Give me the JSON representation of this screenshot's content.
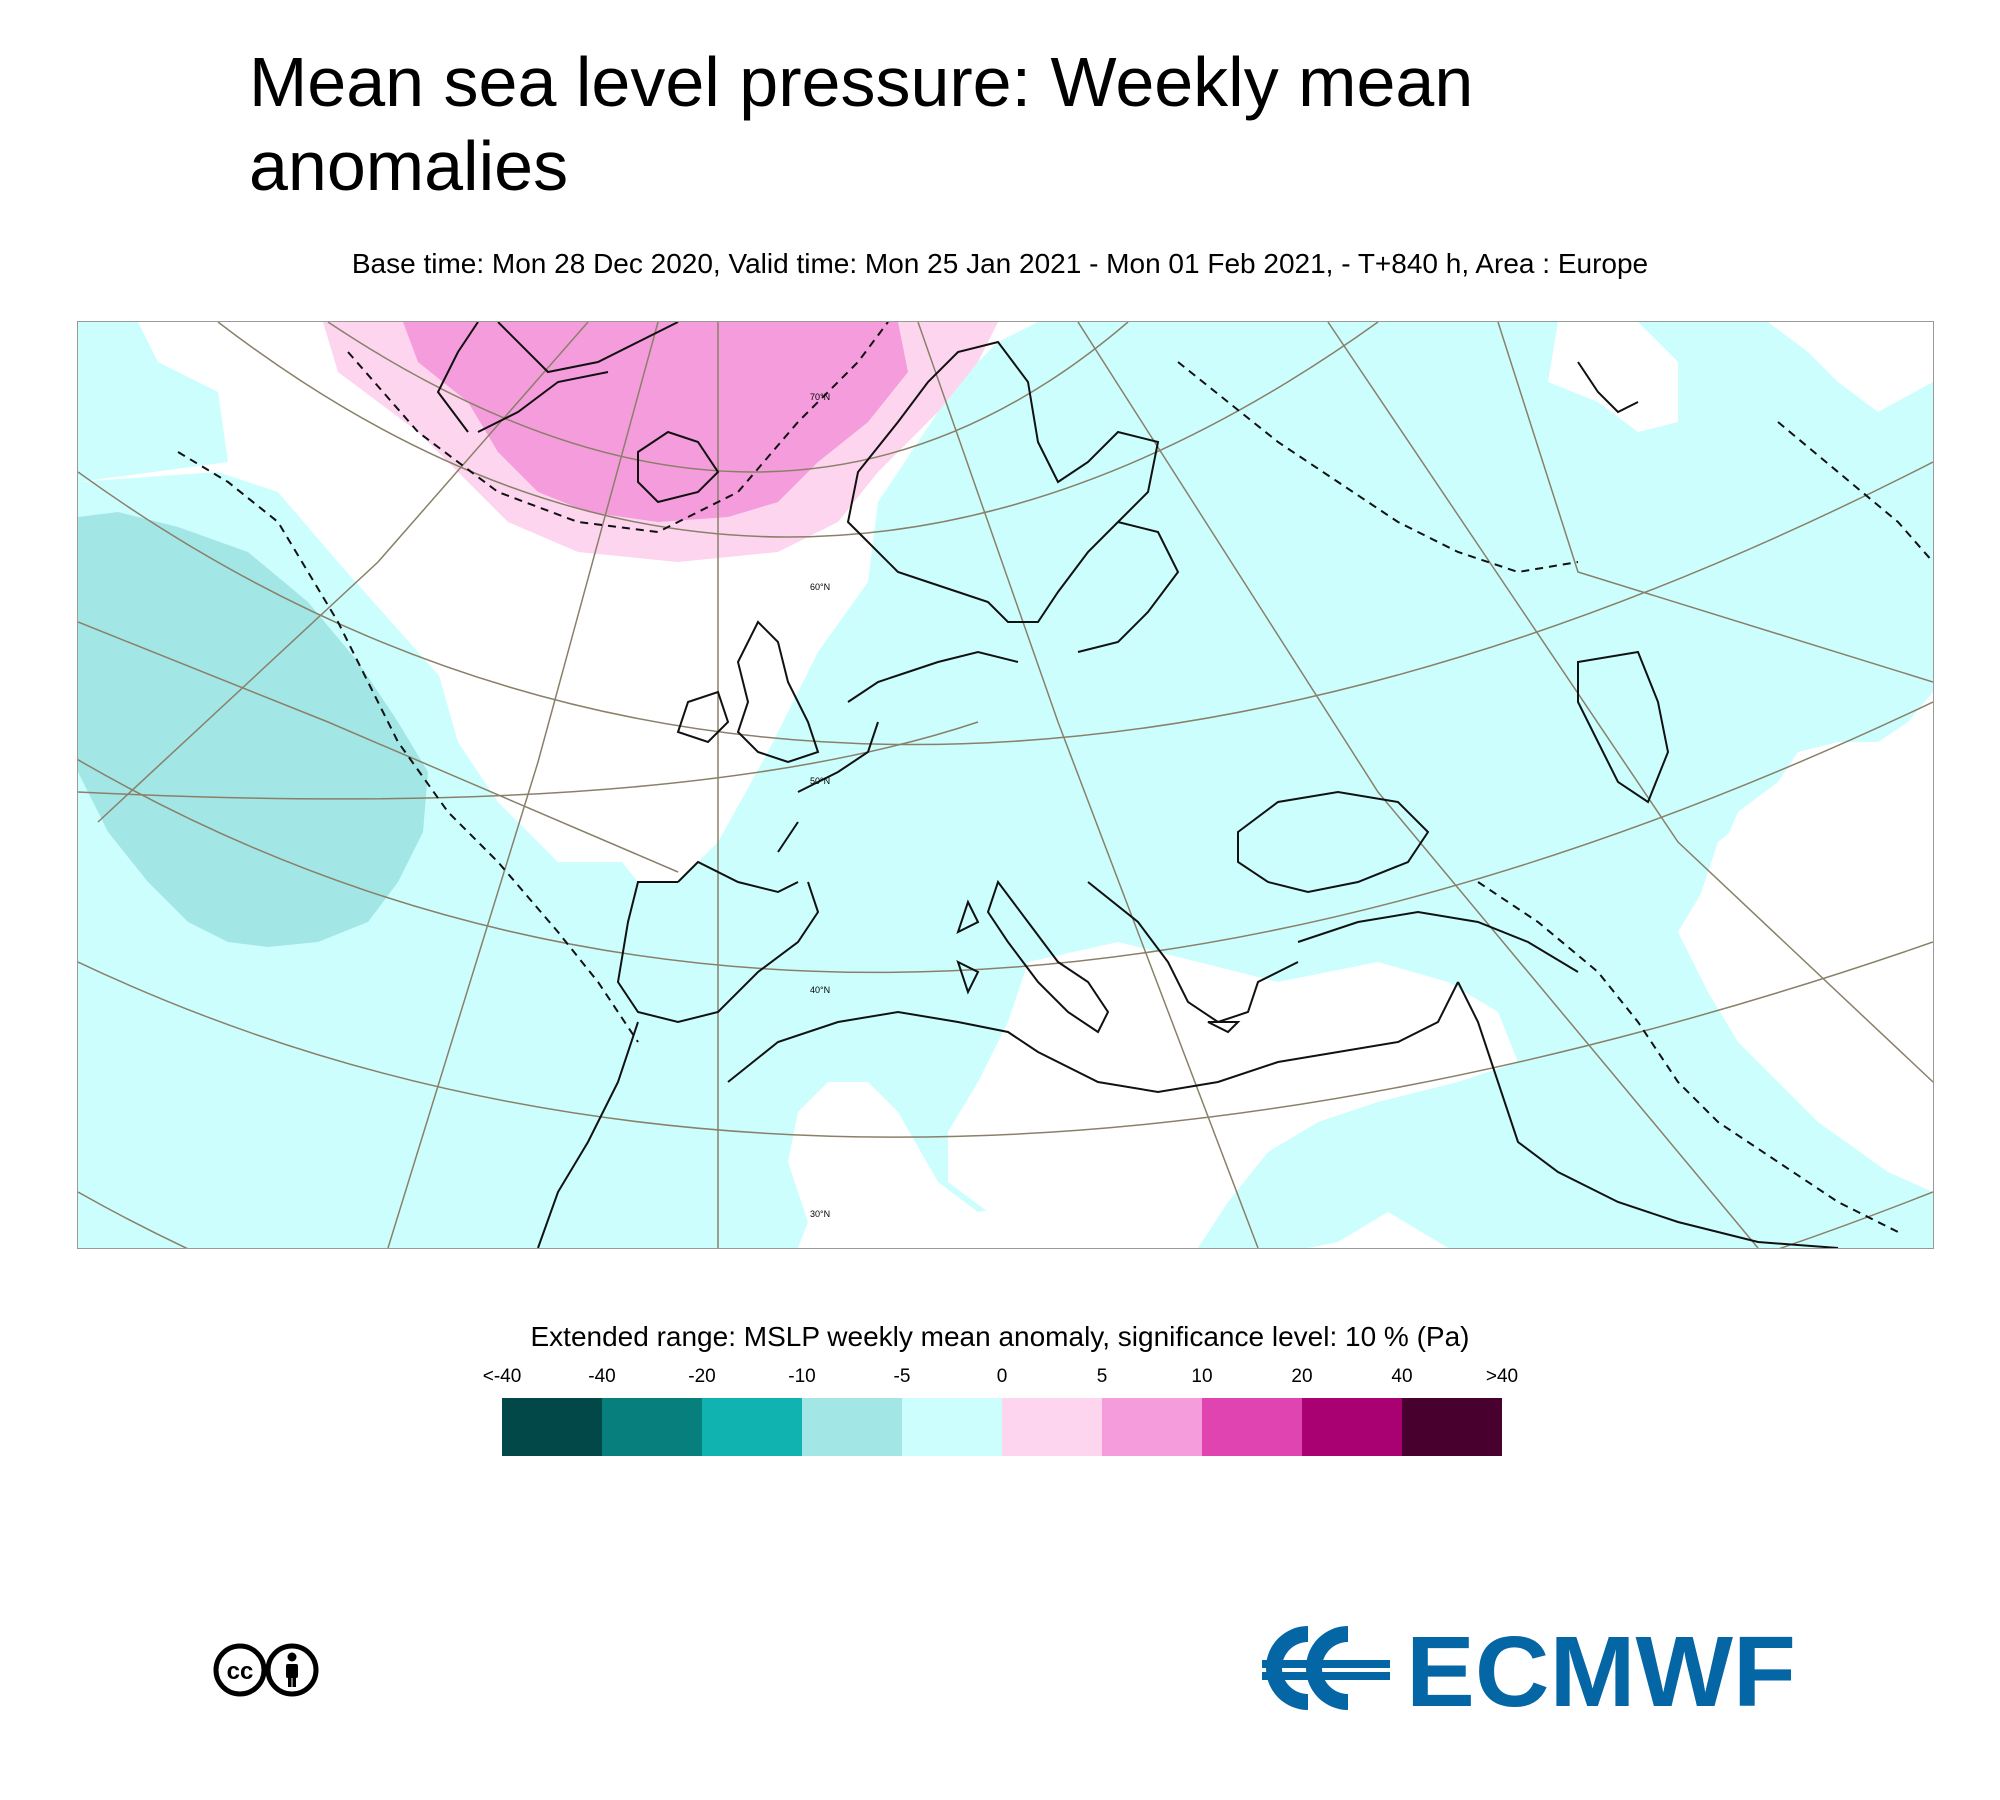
{
  "title_line1": "Mean sea level pressure: Weekly mean",
  "title_line2": "anomalies",
  "subtitle": "Base time: Mon 28 Dec 2020, Valid time: Mon 25 Jan 2021 - Mon 01 Feb 2021, - T+840 h, Area : Europe",
  "map": {
    "area": "Europe",
    "latitude_labels": [
      "70°N",
      "60°N",
      "50°N",
      "40°N",
      "30°N"
    ],
    "colors": {
      "pos_strong": "#f59cdc",
      "pos_weak": "#fdd5ee",
      "neg_weak": "#ccfefe",
      "neg_mod": "#a3e6e6",
      "coast": "#111111",
      "grid": "#8a8069"
    }
  },
  "legend": {
    "title": "Extended range: MSLP weekly mean anomaly, significance level: 10 % (Pa)",
    "ticks": [
      "<-40",
      "-40",
      "-20",
      "-10",
      "-5",
      "0",
      "5",
      "10",
      "20",
      "40",
      ">40"
    ],
    "colors": [
      "#034848",
      "#07807d",
      "#10b3b0",
      "#a3e6e6",
      "#ccfefe",
      "#fdd5ee",
      "#f59cdc",
      "#e044b0",
      "#a90072",
      "#48002f"
    ]
  },
  "license_icon": "creative-commons-by-icon",
  "logo": {
    "text": "ECMWF",
    "color": "#0566a6"
  }
}
